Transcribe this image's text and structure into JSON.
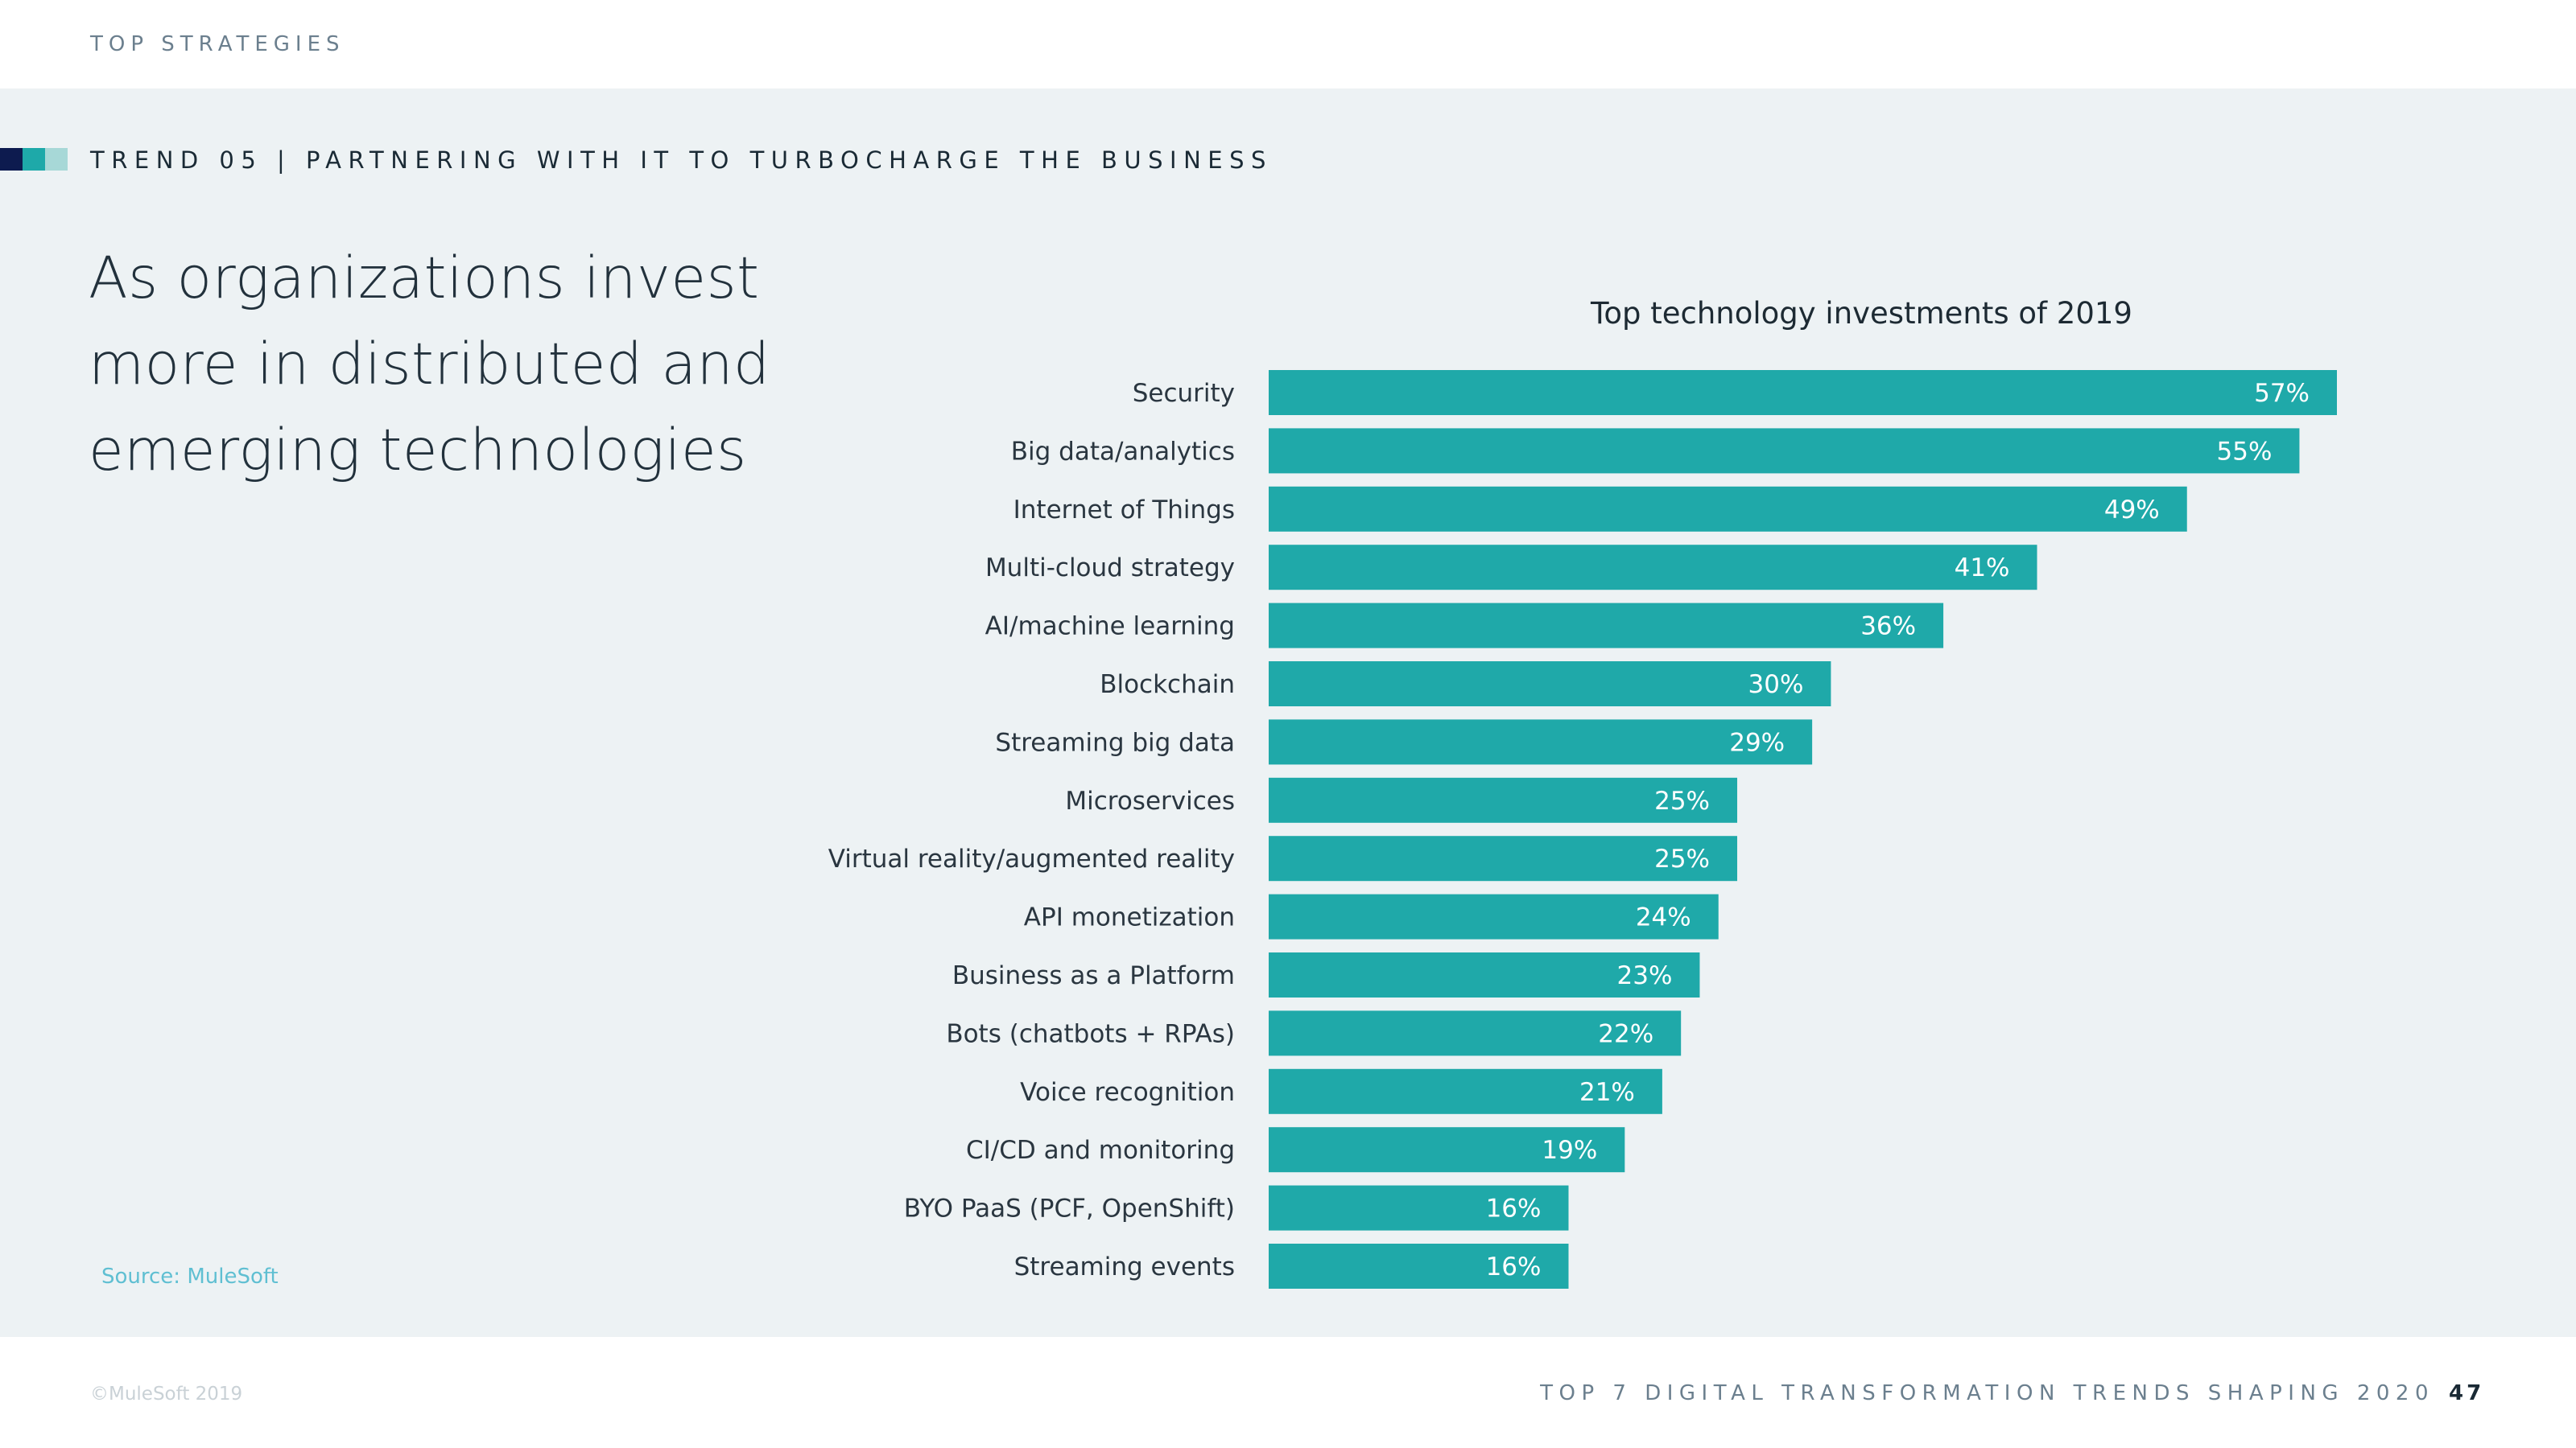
{
  "header": {
    "section_label": "TOP STRATEGIES",
    "trend_heading": "TREND 05 | PARTNERING WITH IT TO TURBOCHARGE THE BUSINESS"
  },
  "colors": {
    "swatch_dark": "#0d1b4f",
    "swatch_teal": "#1ea9a9",
    "swatch_light": "#a7d8d7",
    "bar": "#1fa9a9",
    "panel_background": "#edf2f4"
  },
  "headline": {
    "line1": "As organizations invest",
    "line2": "more in distributed and",
    "line3": "emerging technologies"
  },
  "source": "Source: MuleSoft",
  "chart_data": {
    "type": "bar",
    "orientation": "horizontal",
    "title": "Top technology investments of 2019",
    "categories": [
      "Security",
      "Big data/analytics",
      "Internet of Things",
      "Multi-cloud strategy",
      "AI/machine learning",
      "Blockchain",
      "Streaming big data",
      "Microservices",
      "Virtual reality/augmented reality",
      "API monetization",
      "Business as a Platform",
      "Bots (chatbots + RPAs)",
      "Voice recognition",
      "CI/CD and monitoring",
      "BYO PaaS (PCF, OpenShift)",
      "Streaming events"
    ],
    "values": [
      57,
      55,
      49,
      41,
      36,
      30,
      29,
      25,
      25,
      24,
      23,
      22,
      21,
      19,
      16,
      16
    ],
    "value_labels": [
      "57%",
      "55%",
      "49%",
      "41%",
      "36%",
      "30%",
      "29%",
      "25%",
      "25%",
      "24%",
      "23%",
      "22%",
      "21%",
      "19%",
      "16%",
      "16%"
    ],
    "unit": "%",
    "xlim": [
      0,
      57
    ],
    "grid": false,
    "legend": "none"
  },
  "footer": {
    "copyright": "©MuleSoft 2019",
    "title": "TOP 7 DIGITAL TRANSFORMATION TRENDS SHAPING 2020",
    "page_number": "47"
  }
}
